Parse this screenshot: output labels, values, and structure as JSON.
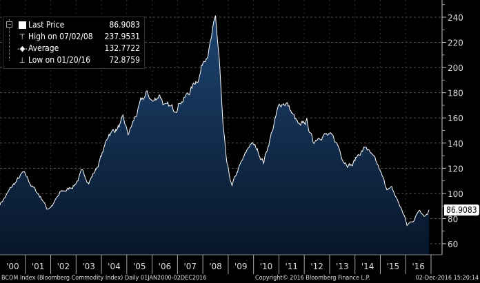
{
  "chart_data": {
    "type": "area",
    "title": "BCOM Index (Bloomberg Commodity Index)",
    "frequency": "Daily",
    "range_label": "01JAN2000-02DEC2016",
    "ylim": [
      52,
      245
    ],
    "yticks": [
      60,
      80,
      100,
      120,
      140,
      160,
      180,
      200,
      220,
      240
    ],
    "xlim": [
      2000,
      2017
    ],
    "xtick_labels": [
      "'00",
      "'01",
      "'02",
      "'03",
      "'04",
      "'05",
      "'06",
      "'07",
      "'08",
      "'09",
      "'10",
      "'11",
      "'12",
      "'13",
      "'14",
      "'15",
      "'16"
    ],
    "series": [
      {
        "name": "Last Price",
        "x": [
          2000.0,
          2000.3,
          2000.6,
          2000.9,
          2001.1,
          2001.4,
          2001.7,
          2001.85,
          2002.1,
          2002.4,
          2002.7,
          2002.95,
          2003.2,
          2003.5,
          2003.8,
          2004.1,
          2004.3,
          2004.6,
          2004.85,
          2005.05,
          2005.3,
          2005.55,
          2005.8,
          2006.05,
          2006.3,
          2006.55,
          2006.85,
          2007.1,
          2007.35,
          2007.6,
          2007.85,
          2008.1,
          2008.3,
          2008.5,
          2008.65,
          2008.8,
          2008.95,
          2009.15,
          2009.4,
          2009.7,
          2009.9,
          2010.15,
          2010.4,
          2010.7,
          2010.95,
          2011.15,
          2011.3,
          2011.6,
          2011.85,
          2012.1,
          2012.35,
          2012.55,
          2012.75,
          2013.0,
          2013.3,
          2013.55,
          2013.9,
          2014.2,
          2014.45,
          2014.7,
          2014.95,
          2015.2,
          2015.45,
          2015.7,
          2015.95,
          2016.05,
          2016.35,
          2016.55,
          2016.75,
          2016.92
        ],
        "values": [
          92,
          100,
          108,
          115,
          110,
          102,
          95,
          88,
          92,
          100,
          103,
          108,
          116,
          110,
          120,
          135,
          148,
          152,
          157,
          145,
          158,
          170,
          178,
          172,
          180,
          168,
          165,
          176,
          178,
          185,
          195,
          212,
          222,
          236,
          205,
          150,
          120,
          104,
          118,
          130,
          140,
          134,
          126,
          148,
          165,
          172,
          173,
          160,
          150,
          156,
          140,
          146,
          150,
          145,
          138,
          128,
          124,
          133,
          137,
          127,
          118,
          105,
          103,
          93,
          82,
          74,
          80,
          88,
          84,
          86.9
        ]
      }
    ],
    "legend": [
      {
        "label": "Last Price",
        "value": "86.9083"
      },
      {
        "label": "High on 07/02/08",
        "value": "237.9531"
      },
      {
        "label": "Average",
        "value": "132.7722"
      },
      {
        "label": "Low on 01/20/16",
        "value": "72.8759"
      }
    ],
    "last_price_tag": "86.9083",
    "grid": true,
    "legend_position": "top-left"
  },
  "footer": {
    "left": "BCOM Index (Bloomberg Commodity Index)  Daily 01JAN2000-02DEC2016",
    "center": "Copyright© 2016 Bloomberg Finance L.P.",
    "right": "02-Dec-2016 15:20:14"
  },
  "colors": {
    "fill_top": "#1d4470",
    "fill_bottom": "#07162a",
    "line": "#ffffff",
    "bg": "#000000"
  }
}
